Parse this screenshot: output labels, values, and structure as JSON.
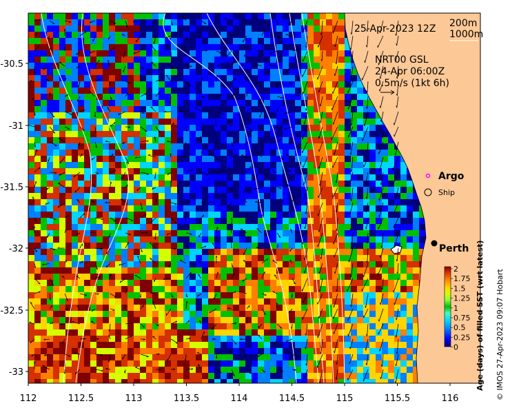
{
  "map": {
    "date_label": "25-Apr-2023 12Z",
    "depth_contours": [
      "200m",
      "1000m"
    ],
    "current_product": "NRT00 GSL",
    "current_time": "24-Apr 06:00Z",
    "current_scale": "0.5m/s (1kt 6h)",
    "x_ticks": [
      "112",
      "112.5",
      "113",
      "113.5",
      "114",
      "114.5",
      "115",
      "115.5",
      "116"
    ],
    "y_ticks": [
      "-30.5",
      "-31",
      "-31.5",
      "-32",
      "-32.5",
      "-33"
    ],
    "legend": {
      "argo": "Argo",
      "ship": "Ship"
    },
    "place_label": "Perth",
    "colorbar": {
      "title": "Age (days) of filled SST (wrt latest)",
      "ticks": [
        "2",
        "1.75",
        "1.5",
        "1.25",
        "1",
        "0.75",
        "0.5",
        "0.25",
        "0"
      ],
      "colors": [
        "#00007f",
        "#0000ff",
        "#007fff",
        "#00d4ff",
        "#3fffbf",
        "#7fff3f",
        "#00c000",
        "#d4ff00",
        "#ffd400",
        "#ff7f00",
        "#d43000",
        "#7f0000"
      ]
    },
    "copyright": "© IMOS 27-Apr-2023 09:07 Hobart",
    "land_color": "#fcc896"
  }
}
